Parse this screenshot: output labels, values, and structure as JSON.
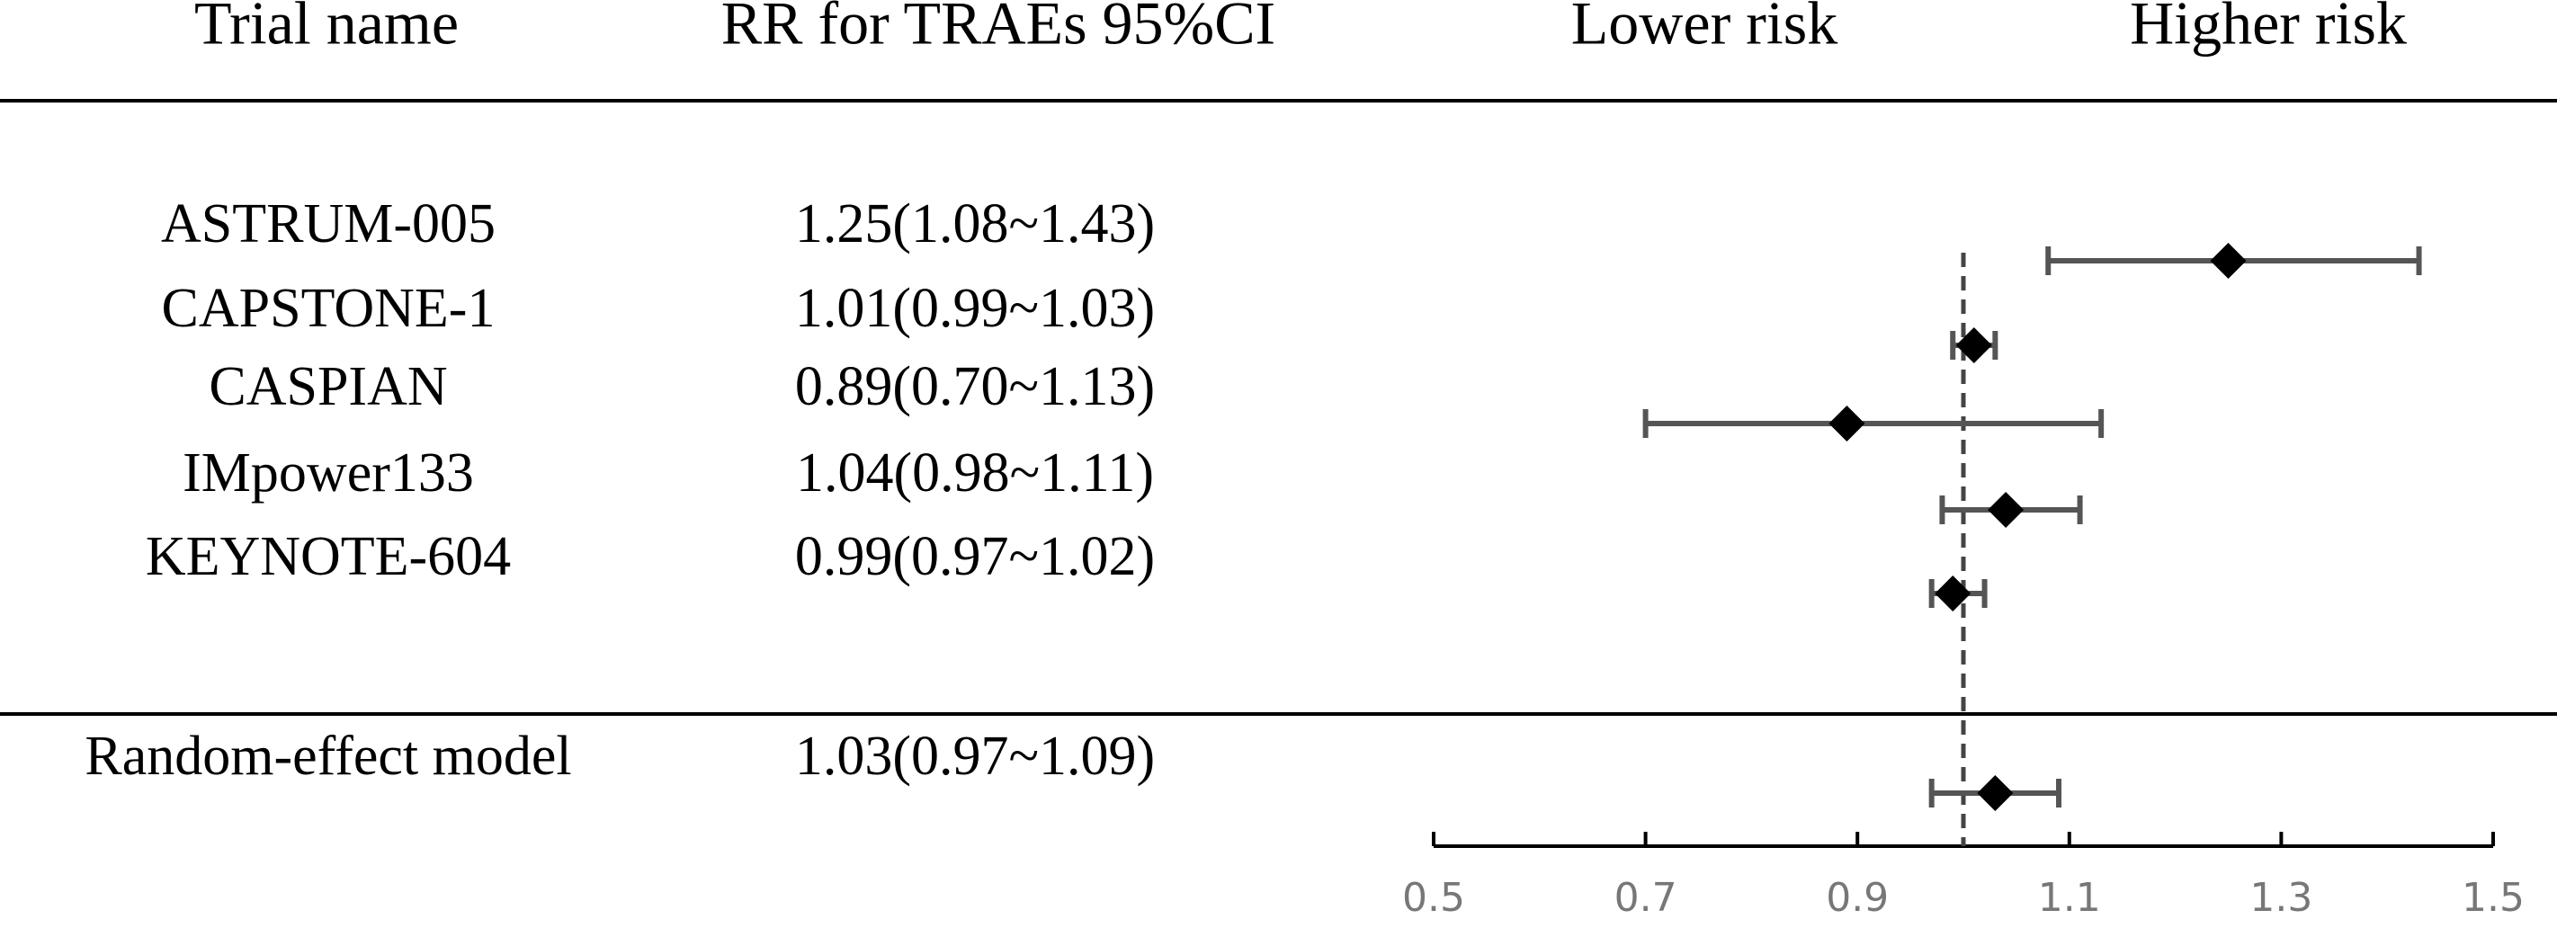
{
  "chart_data": {
    "type": "forest",
    "headers": [
      "Trial name",
      "RR for TRAEs 95%CI",
      "Lower risk",
      "Higher risk"
    ],
    "categories": [
      "ASTRUM-005",
      "CAPSTONE-1",
      "CASPIAN",
      "IMpower133",
      "KEYNOTE-604"
    ],
    "values": [
      1.25,
      1.01,
      0.89,
      1.04,
      0.99
    ],
    "lower": [
      1.08,
      0.99,
      0.7,
      0.98,
      0.97
    ],
    "upper": [
      1.43,
      1.03,
      1.13,
      1.11,
      1.02
    ],
    "value_labels": [
      "1.25(1.08~1.43)",
      "1.01(0.99~1.03)",
      "0.89(0.70~1.13)",
      "1.04(0.98~1.11)",
      "0.99(0.97~1.02)"
    ],
    "summary": {
      "name": "Random-effect model",
      "value": 1.03,
      "lower": 0.97,
      "upper": 1.09,
      "value_label": "1.03(0.97~1.09)"
    },
    "ref_line": 1,
    "xlim": [
      0.5,
      1.5
    ],
    "xticks": [
      0.5,
      0.7,
      0.9,
      1.1,
      1.3,
      1.5
    ],
    "marker_color": "#000000",
    "bar_color": "#555555"
  }
}
